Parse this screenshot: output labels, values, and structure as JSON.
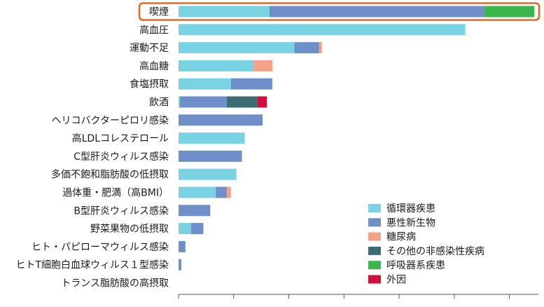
{
  "chart_data": {
    "type": "bar",
    "orientation": "horizontal",
    "stacked": true,
    "categories": [
      "喫煙",
      "高血圧",
      "運動不足",
      "高血糖",
      "食塩摂取",
      "飲酒",
      "ヘリコバクターピロリ感染",
      "高LDLコレステロール",
      "C型肝炎ウィルス感染",
      "多価不飽和脂肪酸の低摂取",
      "過体重・肥満（高BMI）",
      "B型肝炎ウィルス感染",
      "野菜果物の低摂取",
      "ヒト・パピローマウィルス感染",
      "ヒトT細胞白血球ウィルス１型感染",
      "トランス脂肪酸の高摂取"
    ],
    "series": [
      {
        "name": "循環器疾患",
        "color": "#7ad3e2",
        "values": [
          33,
          104,
          42,
          27,
          19,
          0.5,
          0,
          24,
          0,
          21,
          13.5,
          0,
          4.5,
          0,
          0,
          0
        ]
      },
      {
        "name": "悪性新生物",
        "color": "#6f8fc8",
        "values": [
          78,
          0,
          9,
          0,
          15,
          17,
          30.5,
          0,
          23,
          0,
          4,
          11.5,
          4.5,
          2.5,
          1,
          0
        ]
      },
      {
        "name": "糖尿病",
        "color": "#f6a18a",
        "values": [
          0,
          0,
          1,
          7,
          0,
          0,
          0,
          0,
          0,
          0,
          1.5,
          0,
          0,
          0,
          0,
          0
        ]
      },
      {
        "name": "その他の非感染性疾病",
        "color": "#3d6b73",
        "values": [
          0,
          0,
          0,
          0,
          0,
          11,
          0,
          0,
          0,
          0,
          0,
          0,
          0,
          0,
          0,
          0
        ]
      },
      {
        "name": "呼吸器系疾患",
        "color": "#39b54a",
        "values": [
          18,
          0,
          0,
          0,
          0,
          0,
          0,
          0,
          0,
          0,
          0,
          0,
          0,
          0,
          0,
          0
        ]
      },
      {
        "name": "外因",
        "color": "#d0103a",
        "values": [
          0,
          0,
          0,
          0,
          0,
          3.5,
          0,
          0,
          0,
          0,
          0,
          0,
          0,
          0,
          0,
          0
        ]
      }
    ],
    "xlim": [
      0,
      130
    ],
    "x_ticks": [
      0,
      20,
      40,
      60,
      80,
      100,
      120
    ],
    "x_tick_labels_visible": false,
    "grid": false,
    "legend_position": "bottom-right",
    "highlight": {
      "category": "喫煙",
      "outline_color": "#e8661e"
    }
  }
}
